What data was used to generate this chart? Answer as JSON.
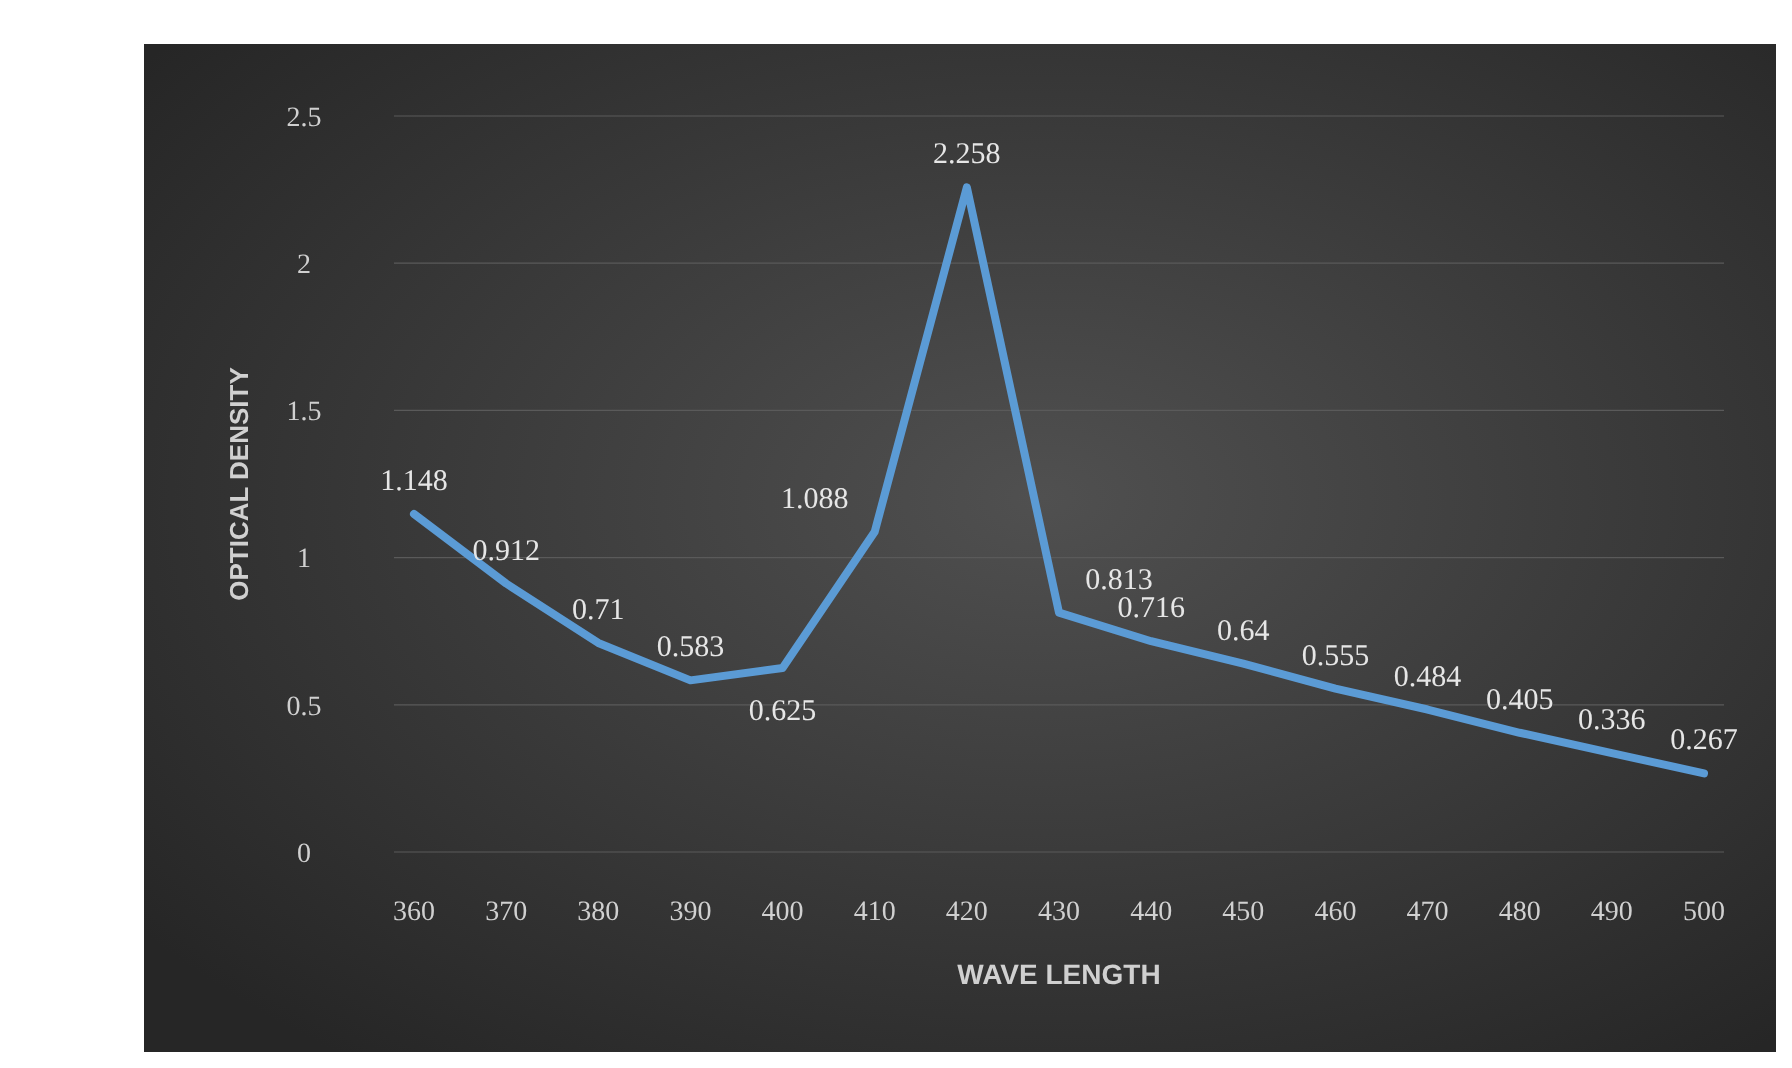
{
  "chart_data": {
    "type": "line",
    "xlabel": "WAVE LENGTH",
    "ylabel": "OPTICAL DENSITY",
    "categories": [
      "360",
      "370",
      "380",
      "390",
      "400",
      "410",
      "420",
      "430",
      "440",
      "450",
      "460",
      "470",
      "480",
      "490",
      "500"
    ],
    "series": [
      {
        "color": "#5b9bd5",
        "values": [
          1.148,
          0.912,
          0.71,
          0.583,
          0.625,
          1.088,
          2.258,
          0.813,
          0.716,
          0.64,
          0.555,
          0.484,
          0.405,
          0.336,
          0.267
        ]
      }
    ],
    "ylim": [
      0,
      2.5
    ],
    "yticks": [
      0,
      0.5,
      1,
      1.5,
      2,
      2.5
    ],
    "grid": "y",
    "data_labels": true,
    "marker": "none",
    "line_style": "solid"
  }
}
